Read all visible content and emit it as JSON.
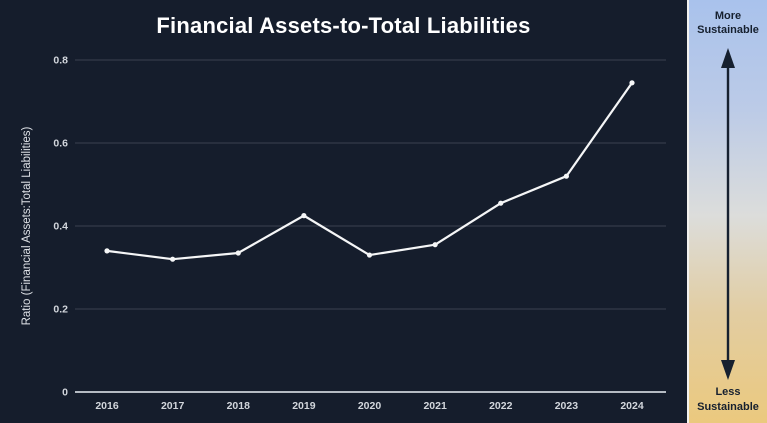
{
  "chart_data": {
    "type": "line",
    "title": "Financial Assets-to-Total Liabilities",
    "ylabel": "Ratio (Financial Assets:Total Liabilities)",
    "xlabel": "",
    "categories": [
      "2016",
      "2017",
      "2018",
      "2019",
      "2020",
      "2021",
      "2022",
      "2023",
      "2024"
    ],
    "values": [
      0.34,
      0.32,
      0.335,
      0.425,
      0.33,
      0.355,
      0.455,
      0.52,
      0.745
    ],
    "ylim": [
      0,
      0.8
    ],
    "yticks": [
      0,
      0.2,
      0.4,
      0.6,
      0.8
    ],
    "grid": true,
    "legend_position": "none",
    "marker": "circle"
  },
  "scale_panel": {
    "top_label": "More\nSustainable",
    "bottom_label": "Less\nSustainable",
    "arrow": "double-headed-vertical-arrow"
  },
  "colors": {
    "background": "#151d2c",
    "gridline": "#3a4150",
    "axis-line": "#ccd2d9",
    "series": "#f5f6f7",
    "tick-text": "#d2d6dc",
    "title-text": "#ffffff",
    "panel-top": "#a9c2ec",
    "panel-mid": "#dcdddb",
    "panel-bottom": "#ebc97e",
    "panel-text": "#16202f",
    "panel-border": "#f2f1ee"
  }
}
